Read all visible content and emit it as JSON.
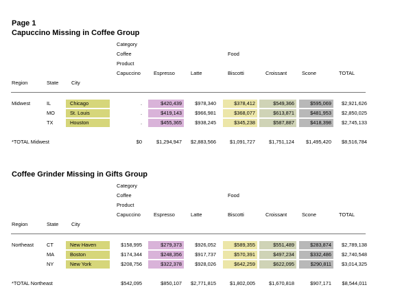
{
  "page_label": "Page 1",
  "sections": [
    {
      "title": "Capuccino Missing in Coffee Group",
      "header": {
        "dims": [
          "Category",
          "Coffee",
          "Product"
        ],
        "food": "Food",
        "region": "Region",
        "state": "State",
        "city": "City",
        "products": [
          "Capuccino",
          "Espresso",
          "Latte",
          "Biscotti",
          "Croissant",
          "Scone",
          "TOTAL"
        ]
      },
      "rows": [
        {
          "region": "Midwest",
          "state": "IL",
          "city": "Chicago",
          "values": [
            ".",
            "$420,439",
            "$978,340",
            "$378,412",
            "$549,366",
            "$595,069",
            "$2,921,626"
          ]
        },
        {
          "region": "",
          "state": "MO",
          "city": "St. Louis",
          "values": [
            ".",
            "$419,143",
            "$966,981",
            "$368,077",
            "$613,871",
            "$481,953",
            "$2,850,025"
          ]
        },
        {
          "region": "",
          "state": "TX",
          "city": "Houston",
          "values": [
            ".",
            "$455,365",
            "$938,245",
            "$345,238",
            "$587,887",
            "$418,398",
            "$2,745,133"
          ]
        }
      ],
      "total": {
        "label": "*TOTAL Midwest",
        "values": [
          "$0",
          "$1,294,947",
          "$2,883,566",
          "$1,091,727",
          "$1,751,124",
          "$1,495,420",
          "$8,516,784"
        ]
      }
    },
    {
      "title": "Coffee Grinder Missing in Gifts Group",
      "header": {
        "dims": [
          "Category",
          "Coffee",
          "Product"
        ],
        "food": "Food",
        "region": "Region",
        "state": "State",
        "city": "City",
        "products": [
          "Capuccino",
          "Espresso",
          "Latte",
          "Biscotti",
          "Croissant",
          "Scone",
          "TOTAL"
        ]
      },
      "rows": [
        {
          "region": "Northeast",
          "state": "CT",
          "city": "New Haven",
          "values": [
            "$158,995",
            "$279,373",
            "$926,052",
            "$589,355",
            "$551,489",
            "$283,874",
            "$2,789,138"
          ]
        },
        {
          "region": "",
          "state": "MA",
          "city": "Boston",
          "values": [
            "$174,344",
            "$248,356",
            "$917,737",
            "$570,391",
            "$497,234",
            "$332,486",
            "$2,740,548"
          ]
        },
        {
          "region": "",
          "state": "NY",
          "city": "New York",
          "values": [
            "$208,756",
            "$322,378",
            "$928,026",
            "$642,259",
            "$622,095",
            "$290,811",
            "$3,014,325"
          ]
        }
      ],
      "total": {
        "label": "*TOTAL Northeast",
        "values": [
          "$542,095",
          "$850,107",
          "$2,771,815",
          "$1,802,005",
          "$1,670,818",
          "$907,171",
          "$8,544,011"
        ]
      }
    }
  ]
}
